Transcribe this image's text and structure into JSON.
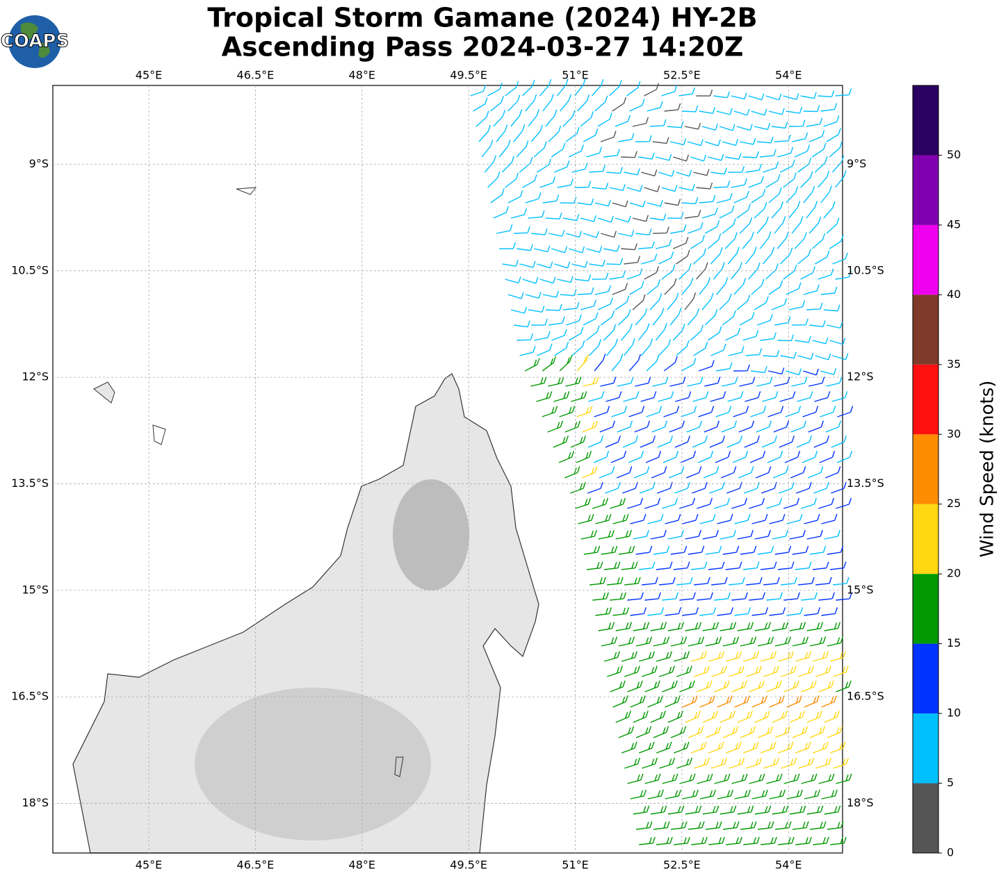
{
  "title": "Tropical Storm Gamane (2024) HY-2B",
  "subtitle": "Ascending Pass 2024-03-27 14:20Z",
  "logo": "COAPS",
  "map": {
    "xlim": [
      43.65,
      54.76
    ],
    "ylim": [
      -18.7,
      -7.89
    ],
    "xticks": [
      {
        "value": 45,
        "label": "45°E"
      },
      {
        "value": 46.5,
        "label": "46.5°E"
      },
      {
        "value": 48,
        "label": "48°E"
      },
      {
        "value": 49.5,
        "label": "49.5°E"
      },
      {
        "value": 51,
        "label": "51°E"
      },
      {
        "value": 52.5,
        "label": "52.5°E"
      },
      {
        "value": 54,
        "label": "54°E"
      }
    ],
    "yticks": [
      {
        "value": -9,
        "label": "9°S"
      },
      {
        "value": -10.5,
        "label": "10.5°S"
      },
      {
        "value": -12,
        "label": "12°S"
      },
      {
        "value": -13.5,
        "label": "13.5°S"
      },
      {
        "value": -15,
        "label": "15°S"
      },
      {
        "value": -16.5,
        "label": "16.5°S"
      },
      {
        "value": -18,
        "label": "18°S"
      }
    ],
    "grid": true
  },
  "colorbar": {
    "label": "Wind Speed (knots)",
    "lim": [
      0,
      55
    ],
    "ticks": [
      0,
      5,
      10,
      15,
      20,
      25,
      30,
      35,
      40,
      45,
      50
    ],
    "bounds": [
      0,
      5,
      10,
      15,
      20,
      25,
      30,
      35,
      40,
      45,
      50,
      55
    ],
    "colors": [
      "#555555",
      "#00bfff",
      "#0033ff",
      "#009900",
      "#ffd712",
      "#ff8c00",
      "#ff1010",
      "#7f3a2a",
      "#ee00ee",
      "#8000b0",
      "#2a0060"
    ]
  }
}
